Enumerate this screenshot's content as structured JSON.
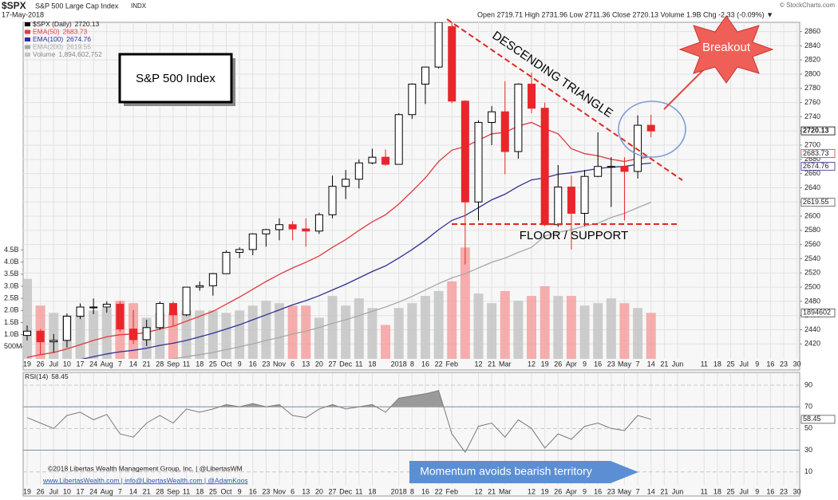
{
  "chart_data": [
    {
      "type": "candlestick",
      "symbol": "$SPX",
      "title": "S&P 500 Large Cap Index",
      "exchange": "INDX",
      "date": "17-May-2018",
      "ohlc_header": "Open 2719.71 High 2731.96 Low 2711.36 Close 2720.13 Volume 1.9B Chg -2.33 (-0.09%) ▼",
      "source": "© StockCharts.com",
      "name": "$SPX (Daily)",
      "last": 2720.13,
      "up_color": "#000000",
      "down_color": "#e8262c",
      "open": [
        2432,
        2438,
        2423,
        2425,
        2459,
        2472,
        2472,
        2476,
        2441,
        2426,
        2443,
        2477,
        2461,
        2500,
        2502,
        2519,
        2549,
        2553,
        2575,
        2581,
        2588,
        2582,
        2579,
        2602,
        2642,
        2652,
        2675,
        2683,
        2673,
        2743,
        2786,
        2810,
        2867,
        2762,
        2620,
        2732,
        2747,
        2691,
        2786,
        2752,
        2588,
        2641,
        2604,
        2656,
        2670,
        2670,
        2663,
        2728
      ],
      "high": [
        2446,
        2441,
        2434,
        2463,
        2477,
        2484,
        2480,
        2480,
        2468,
        2454,
        2480,
        2480,
        2500,
        2508,
        2520,
        2552,
        2556,
        2576,
        2582,
        2597,
        2593,
        2597,
        2605,
        2657,
        2665,
        2680,
        2695,
        2694,
        2745,
        2787,
        2810,
        2873,
        2873,
        2763,
        2735,
        2755,
        2790,
        2787,
        2802,
        2760,
        2672,
        2657,
        2665,
        2718,
        2683,
        2683,
        2742,
        2743
      ],
      "low": [
        2425,
        2405,
        2408,
        2415,
        2455,
        2462,
        2464,
        2437,
        2420,
        2417,
        2440,
        2446,
        2459,
        2495,
        2488,
        2519,
        2541,
        2545,
        2557,
        2566,
        2566,
        2557,
        2575,
        2597,
        2624,
        2639,
        2673,
        2671,
        2673,
        2737,
        2758,
        2808,
        2759,
        2532,
        2594,
        2700,
        2659,
        2681,
        2745,
        2586,
        2585,
        2553,
        2586,
        2655,
        2613,
        2594,
        2653,
        2711
      ],
      "close": [
        2438,
        2423,
        2425,
        2459,
        2472,
        2472,
        2476,
        2441,
        2426,
        2443,
        2477,
        2461,
        2500,
        2502,
        2519,
        2549,
        2553,
        2575,
        2581,
        2588,
        2582,
        2579,
        2602,
        2642,
        2652,
        2675,
        2683,
        2673,
        2743,
        2786,
        2810,
        2873,
        2762,
        2620,
        2732,
        2747,
        2691,
        2786,
        2752,
        2588,
        2641,
        2604,
        2656,
        2670,
        2670,
        2663,
        2728,
        2720
      ],
      "series": [
        {
          "name": "EMA(50)",
          "color": "#e0393e",
          "last": 2683.73,
          "values": [
            2401,
            2405,
            2408,
            2413,
            2419,
            2425,
            2430,
            2433,
            2434,
            2436,
            2441,
            2445,
            2452,
            2459,
            2466,
            2476,
            2486,
            2497,
            2508,
            2518,
            2527,
            2535,
            2544,
            2556,
            2567,
            2580,
            2592,
            2602,
            2617,
            2635,
            2654,
            2677,
            2693,
            2698,
            2707,
            2716,
            2718,
            2727,
            2732,
            2723,
            2716,
            2695,
            2688,
            2685,
            2680,
            2677,
            2681,
            2683.73
          ]
        },
        {
          "name": "EMA(100)",
          "color": "#2e3192",
          "last": 2674.76,
          "values": [
            2386,
            2389,
            2391,
            2394,
            2398,
            2402,
            2406,
            2409,
            2411,
            2414,
            2418,
            2421,
            2425,
            2430,
            2435,
            2441,
            2447,
            2454,
            2461,
            2468,
            2475,
            2481,
            2488,
            2496,
            2504,
            2513,
            2522,
            2530,
            2541,
            2553,
            2566,
            2581,
            2594,
            2601,
            2612,
            2623,
            2631,
            2642,
            2651,
            2654,
            2659,
            2661,
            2664,
            2667,
            2669,
            2670,
            2673,
            2674.76
          ]
        },
        {
          "name": "EMA(200)",
          "color": "#a8a8a8",
          "last": 2619.55,
          "values": [
            null,
            null,
            null,
            null,
            null,
            null,
            2388,
            2390,
            2392,
            2394,
            2397,
            2399,
            2402,
            2405,
            2408,
            2412,
            2416,
            2420,
            2425,
            2429,
            2434,
            2438,
            2443,
            2449,
            2454,
            2460,
            2466,
            2472,
            2479,
            2487,
            2496,
            2505,
            2513,
            2519,
            2527,
            2535,
            2541,
            2549,
            2556,
            2572,
            2577,
            2581,
            2586,
            2590,
            2598,
            2604,
            2612,
            2619.55
          ]
        }
      ],
      "volume": {
        "name": "Volume",
        "last_label": "1,894,602,752",
        "axis_label": "1894602",
        "up_color": "#c4c4c4",
        "down_color": "#f4a0a0",
        "values": [
          3300000000,
          2200000000,
          1900000000,
          1800000000,
          1800000000,
          2000000000,
          2100000000,
          2400000000,
          2300000000,
          1700000000,
          1900000000,
          1900000000,
          2000000000,
          2000000000,
          2000000000,
          1900000000,
          2000000000,
          2200000000,
          2400000000,
          2300000000,
          2200000000,
          2200000000,
          1700000000,
          2600000000,
          2200000000,
          2500000000,
          2100000000,
          1400000000,
          2100000000,
          2300000000,
          2600000000,
          2800000000,
          3200000000,
          4600000000,
          2700000000,
          2300000000,
          2800000000,
          2400000000,
          2600000000,
          3000000000,
          2600000000,
          2600000000,
          2200000000,
          2300000000,
          2500000000,
          2300000000,
          2100000000,
          1900000000
        ]
      },
      "vlim": [
        0,
        13900000000
      ],
      "vticks": [
        {
          "value": 500000000,
          "label": "500M"
        },
        {
          "value": 1000000000,
          "label": "1.0B"
        },
        {
          "value": 1500000000,
          "label": "1.5B"
        },
        {
          "value": 2000000000,
          "label": "2.0B"
        },
        {
          "value": 2500000000,
          "label": "2.5B"
        },
        {
          "value": 3000000000,
          "label": "3.0B"
        },
        {
          "value": 3500000000,
          "label": "3.5B"
        },
        {
          "value": 4000000000,
          "label": "4.0B"
        },
        {
          "value": 4500000000,
          "label": "4.5B"
        }
      ],
      "ylim": [
        2399,
        2873
      ],
      "yticks": [
        2420,
        2440,
        2460,
        2480,
        2500,
        2520,
        2540,
        2560,
        2580,
        2600,
        2620,
        2640,
        2660,
        2680,
        2700,
        2720,
        2740,
        2760,
        2780,
        2800,
        2820,
        2840,
        2860
      ],
      "xlim": [
        -0.3,
        58.2
      ],
      "xticks": [
        {
          "value": 0,
          "label": "19"
        },
        {
          "value": 1,
          "label": "26"
        },
        {
          "value": 2,
          "label": "Jul"
        },
        {
          "value": 3,
          "label": "10"
        },
        {
          "value": 4,
          "label": "17"
        },
        {
          "value": 5,
          "label": "24"
        },
        {
          "value": 6,
          "label": "Aug"
        },
        {
          "value": 7,
          "label": "7"
        },
        {
          "value": 8,
          "label": "14"
        },
        {
          "value": 9,
          "label": "21"
        },
        {
          "value": 10,
          "label": "28"
        },
        {
          "value": 11,
          "label": "Sep"
        },
        {
          "value": 12,
          "label": "11"
        },
        {
          "value": 13,
          "label": "18"
        },
        {
          "value": 14,
          "label": "25"
        },
        {
          "value": 15,
          "label": "Oct"
        },
        {
          "value": 16,
          "label": "9"
        },
        {
          "value": 17,
          "label": "16"
        },
        {
          "value": 18,
          "label": "23"
        },
        {
          "value": 19,
          "label": "Nov"
        },
        {
          "value": 20,
          "label": "6"
        },
        {
          "value": 21,
          "label": "13"
        },
        {
          "value": 22,
          "label": "20"
        },
        {
          "value": 23,
          "label": "27"
        },
        {
          "value": 24,
          "label": "Dec"
        },
        {
          "value": 25,
          "label": "11"
        },
        {
          "value": 26,
          "label": "18"
        },
        {
          "value": 28,
          "label": "2018"
        },
        {
          "value": 29,
          "label": "8"
        },
        {
          "value": 30,
          "label": "16"
        },
        {
          "value": 31,
          "label": "22"
        },
        {
          "value": 32,
          "label": "Feb"
        },
        {
          "value": 34,
          "label": "12"
        },
        {
          "value": 35,
          "label": "21"
        },
        {
          "value": 36,
          "label": "Mar"
        },
        {
          "value": 38,
          "label": "12"
        },
        {
          "value": 39,
          "label": "19"
        },
        {
          "value": 40,
          "label": "26"
        },
        {
          "value": 41,
          "label": "Apr"
        },
        {
          "value": 42,
          "label": "9"
        },
        {
          "value": 43,
          "label": "16"
        },
        {
          "value": 44,
          "label": "23"
        },
        {
          "value": 45,
          "label": "May"
        },
        {
          "value": 46,
          "label": "7"
        },
        {
          "value": 47,
          "label": "14"
        },
        {
          "value": 48,
          "label": "21"
        },
        {
          "value": 49,
          "label": "Jun"
        },
        {
          "value": 51,
          "label": "11"
        },
        {
          "value": 52,
          "label": "18"
        },
        {
          "value": 53,
          "label": "25"
        },
        {
          "value": 54,
          "label": "Jul"
        },
        {
          "value": 55,
          "label": "9"
        },
        {
          "value": 56,
          "label": "16"
        },
        {
          "value": 57,
          "label": "23"
        },
        {
          "value": 58,
          "label": "30"
        }
      ],
      "grid": true,
      "annotations": {
        "box": "S&P 500 Index",
        "triangle": "DESCENDING TRIANGLE",
        "support": "FLOOR / SUPPORT",
        "breakout": "Breakout"
      }
    },
    {
      "type": "line",
      "name": "RSI(14)",
      "last": 58.45,
      "color": "#7a7a7a",
      "values": [
        60,
        55,
        50,
        62,
        65,
        58,
        63,
        45,
        42,
        55,
        62,
        55,
        68,
        65,
        68,
        72,
        70,
        73,
        70,
        72,
        62,
        60,
        68,
        72,
        68,
        70,
        72,
        65,
        78,
        80,
        82,
        85,
        45,
        28,
        52,
        55,
        42,
        58,
        50,
        32,
        45,
        40,
        52,
        55,
        50,
        48,
        62,
        58.45
      ],
      "ylim": [
        -2,
        101
      ],
      "yticks": [
        10,
        30,
        50,
        70,
        90
      ],
      "levels": [
        30,
        70
      ],
      "annotation": "Momentum avoids bearish territory"
    }
  ],
  "footer": [
    "©2018 Libertas Wealth Management Group, Inc.  |  @LibertasWM",
    "www.LibertasWealth.com  |  info@LibertasWealth.com  |  @AdamKoos"
  ]
}
